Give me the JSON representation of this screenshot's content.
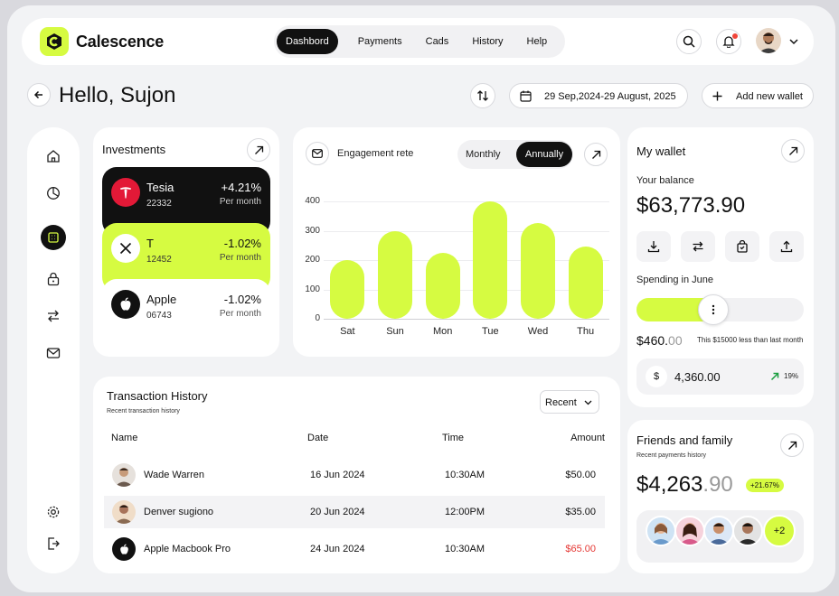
{
  "brand": {
    "name": "Calescence"
  },
  "nav": {
    "items": [
      "Dashbord",
      "Payments",
      "Cads",
      "History",
      "Help"
    ],
    "active": 0
  },
  "header": {
    "greeting": "Hello, Sujon",
    "date_range": "29 Sep,2024-29 August, 2025",
    "add_wallet": "Add new wallet"
  },
  "investments": {
    "title": "Investments",
    "items": [
      {
        "name": "Tesia",
        "code": "22332",
        "change": "+4.21%",
        "period": "Per month",
        "theme": "dark",
        "logo": "tesla-logo"
      },
      {
        "name": "T",
        "code": "12452",
        "change": "-1.02%",
        "period": "Per month",
        "theme": "lime",
        "logo": "x-logo"
      },
      {
        "name": "Apple",
        "code": "06743",
        "change": "-1.02%",
        "period": "Per month",
        "theme": "light",
        "logo": "apple-logo"
      }
    ]
  },
  "engagement": {
    "title": "Engagement rete",
    "toggle": [
      "Monthly",
      "Annually"
    ],
    "active": 1
  },
  "chart_data": {
    "type": "bar",
    "categories": [
      "Sat",
      "Sun",
      "Mon",
      "Tue",
      "Wed",
      "Thu"
    ],
    "values": [
      200,
      300,
      225,
      400,
      325,
      245
    ],
    "ylim": [
      0,
      400
    ],
    "yticks": [
      0,
      100,
      200,
      300,
      400
    ],
    "color": "#d6fb41"
  },
  "wallet": {
    "title": "My wallet",
    "balance_label": "Your balance",
    "balance": "$63,773.90",
    "actions": [
      "download-icon",
      "transfer-icon",
      "bag-icon",
      "upload-icon"
    ],
    "spending_label": "Spending in June",
    "spending_fraction": 0.46,
    "spent_main": "$460.",
    "spent_cents": "00",
    "note": "This $15000 less than last month",
    "amount": "4,360.00",
    "pct": "19%"
  },
  "transactions": {
    "title": "Transaction History",
    "subtitle": "Recent transaction history",
    "filter": "Recent",
    "columns": [
      "Name",
      "Date",
      "Time",
      "Amount"
    ],
    "rows": [
      {
        "name": "Wade Warren",
        "date": "16 Jun 2024",
        "time": "10:30AM",
        "amount": "$50.00",
        "negative": false
      },
      {
        "name": "Denver sugiono",
        "date": "20 Jun 2024",
        "time": "12:00PM",
        "amount": "$35.00",
        "negative": false
      },
      {
        "name": "Apple Macbook Pro",
        "date": "24 Jun 2024",
        "time": "10:30AM",
        "amount": "$65.00",
        "negative": true
      }
    ]
  },
  "friends": {
    "title": "Friends and family",
    "subtitle": "Recent payments history",
    "amount_main": "$4,263",
    "amount_cents": ".90",
    "badge": "+21.67%",
    "more": "+2"
  }
}
